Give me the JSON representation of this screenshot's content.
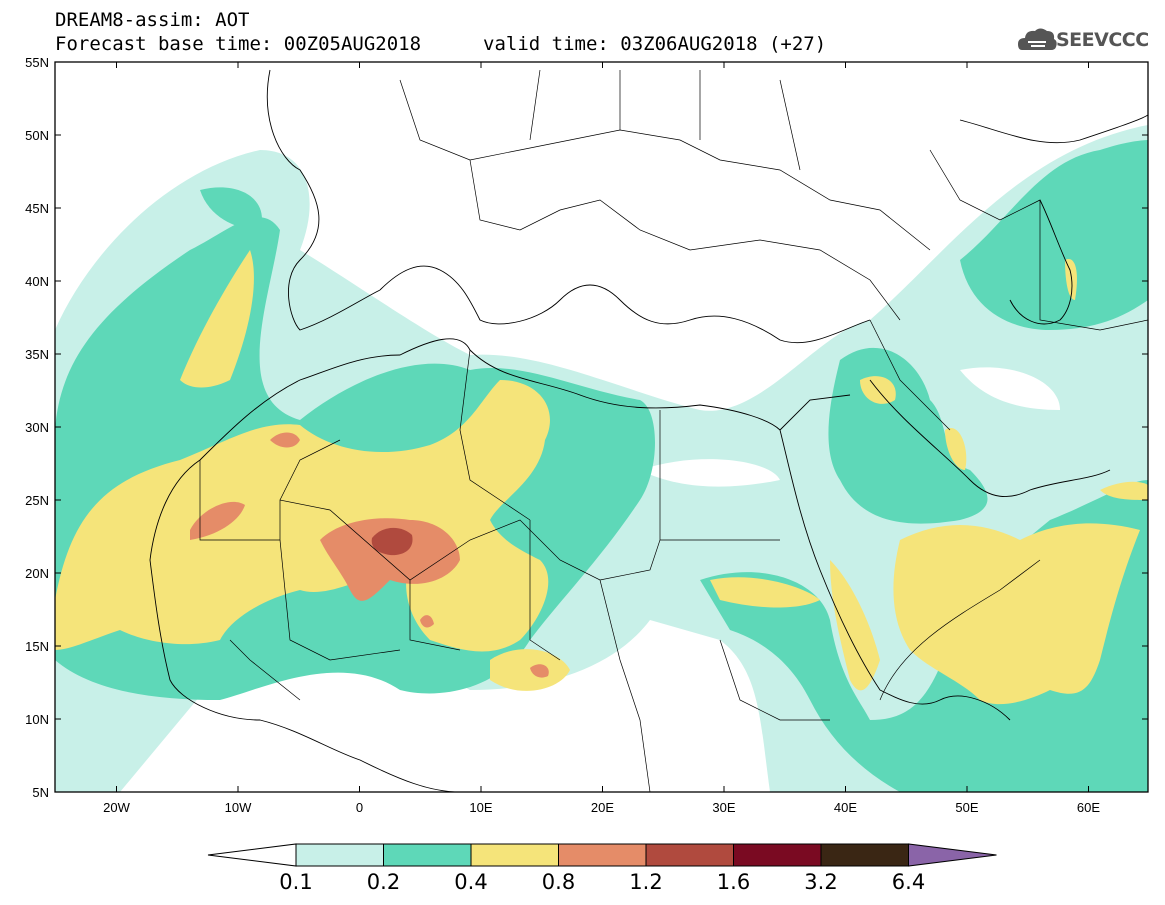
{
  "header": {
    "title": "DREAM8-assim: AOT",
    "base_time": "Forecast base time: 00Z05AUG2018",
    "valid_time": "valid time: 03Z06AUG2018 (+27)"
  },
  "logo": {
    "text": "SEEVCCC",
    "icon": "cloud-icon"
  },
  "map": {
    "lat_labels": [
      "55N",
      "50N",
      "45N",
      "40N",
      "35N",
      "30N",
      "25N",
      "20N",
      "15N",
      "10N",
      "5N"
    ],
    "lon_labels": [
      "20W",
      "10W",
      "0",
      "10E",
      "20E",
      "30E",
      "40E",
      "50E",
      "60E"
    ],
    "variable": "AOT"
  },
  "colorbar": {
    "labels": [
      "0.1",
      "0.2",
      "0.4",
      "0.8",
      "1.2",
      "1.6",
      "3.2",
      "6.4"
    ],
    "colors": [
      "#c8f0e8",
      "#5ed8b8",
      "#f5e47a",
      "#e58c68",
      "#b04a3e",
      "#7a0a22",
      "#3a2614",
      "#8a64a8"
    ]
  }
}
